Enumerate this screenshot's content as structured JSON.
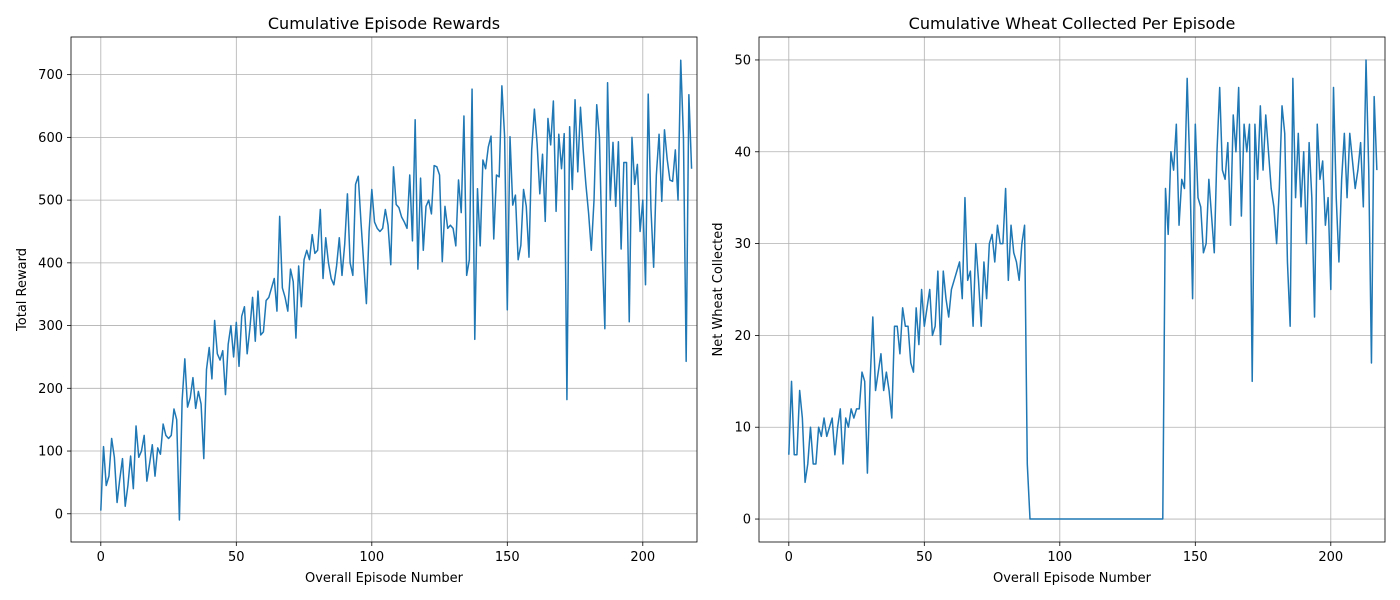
{
  "chart_data": [
    {
      "type": "line",
      "title": "Cumulative Episode Rewards",
      "xlabel": "Overall Episode Number",
      "ylabel": "Total Reward",
      "xlim": [
        -11,
        220
      ],
      "ylim": [
        -45,
        760
      ],
      "xticks": [
        0,
        50,
        100,
        150,
        200
      ],
      "yticks": [
        0,
        100,
        200,
        300,
        400,
        500,
        600,
        700
      ],
      "grid": true,
      "series_color": "#1f77b4",
      "x_start": 0,
      "values": [
        5,
        107,
        45,
        60,
        120,
        90,
        18,
        55,
        88,
        12,
        45,
        92,
        40,
        140,
        90,
        100,
        125,
        52,
        80,
        110,
        60,
        105,
        95,
        143,
        125,
        120,
        125,
        167,
        150,
        -10,
        180,
        247,
        170,
        185,
        217,
        168,
        195,
        175,
        88,
        230,
        265,
        215,
        308,
        255,
        245,
        260,
        190,
        270,
        300,
        250,
        305,
        235,
        315,
        330,
        255,
        295,
        345,
        275,
        355,
        285,
        290,
        340,
        345,
        360,
        375,
        323,
        474,
        360,
        345,
        323,
        390,
        370,
        280,
        395,
        330,
        405,
        420,
        405,
        445,
        415,
        420,
        485,
        375,
        440,
        400,
        375,
        365,
        395,
        440,
        380,
        430,
        510,
        400,
        380,
        525,
        538,
        465,
        400,
        335,
        450,
        517,
        465,
        455,
        450,
        455,
        485,
        460,
        397,
        553,
        493,
        488,
        473,
        465,
        455,
        540,
        435,
        628,
        390,
        535,
        420,
        490,
        500,
        478,
        555,
        553,
        540,
        402,
        490,
        455,
        460,
        455,
        427,
        532,
        480,
        634,
        380,
        405,
        677,
        278,
        518,
        427,
        564,
        550,
        585,
        602,
        438,
        540,
        537,
        682,
        602,
        325,
        601,
        492,
        508,
        405,
        428,
        517,
        490,
        409,
        580,
        645,
        590,
        510,
        573,
        466,
        630,
        588,
        658,
        482,
        605,
        550,
        606,
        182,
        617,
        517,
        660,
        545,
        648,
        580,
        525,
        479,
        420,
        500,
        652,
        600,
        420,
        295,
        687,
        500,
        592,
        490,
        593,
        422,
        560,
        560,
        306,
        600,
        525,
        557,
        450,
        500,
        365,
        669,
        487,
        393,
        540,
        605,
        498,
        612,
        565,
        532,
        530,
        580,
        500,
        723,
        600,
        243,
        668,
        550
      ]
    },
    {
      "type": "line",
      "title": "Cumulative Wheat Collected Per Episode",
      "xlabel": "Overall Episode Number",
      "ylabel": "Net Wheat Collected",
      "xlim": [
        -11,
        220
      ],
      "ylim": [
        -2.5,
        52.5
      ],
      "xticks": [
        0,
        50,
        100,
        150,
        200
      ],
      "yticks": [
        0,
        10,
        20,
        30,
        40,
        50
      ],
      "grid": true,
      "series_color": "#1f77b4",
      "x_start": 0,
      "values": [
        7,
        15,
        7,
        7,
        14,
        11,
        4,
        6,
        10,
        6,
        6,
        10,
        9,
        11,
        9,
        10,
        11,
        7,
        10,
        12,
        6,
        11,
        10,
        12,
        11,
        12,
        12,
        16,
        15,
        5,
        15,
        22,
        14,
        16,
        18,
        14,
        16,
        14,
        11,
        21,
        21,
        18,
        23,
        21,
        21,
        17,
        16,
        23,
        19,
        25,
        21,
        23,
        25,
        20,
        21,
        27,
        19,
        27,
        24,
        22,
        25,
        26,
        27,
        28,
        24,
        35,
        26,
        27,
        21,
        30,
        26,
        21,
        28,
        24,
        30,
        31,
        28,
        32,
        30,
        30,
        36,
        26,
        32,
        29,
        28,
        26,
        30,
        32,
        6,
        0,
        0,
        0,
        0,
        0,
        0,
        0,
        0,
        0,
        0,
        0,
        0,
        0,
        0,
        0,
        0,
        0,
        0,
        0,
        0,
        0,
        0,
        0,
        0,
        0,
        0,
        0,
        0,
        0,
        0,
        0,
        0,
        0,
        0,
        0,
        0,
        0,
        0,
        0,
        0,
        0,
        0,
        0,
        0,
        0,
        0,
        0,
        0,
        0,
        0,
        36,
        31,
        40,
        38,
        43,
        32,
        37,
        36,
        48,
        38,
        24,
        43,
        35,
        34,
        29,
        30,
        37,
        33,
        29,
        40,
        47,
        38,
        37,
        41,
        32,
        44,
        40,
        47,
        33,
        43,
        40,
        43,
        15,
        43,
        37,
        45,
        38,
        44,
        40,
        36,
        34,
        30,
        36,
        45,
        42,
        28,
        21,
        48,
        35,
        42,
        34,
        40,
        30,
        41,
        35,
        22,
        43,
        37,
        39,
        32,
        35,
        25,
        47,
        35,
        28,
        37,
        42,
        35,
        42,
        39,
        36,
        38,
        41,
        34,
        50,
        38,
        17,
        46,
        38
      ]
    }
  ]
}
